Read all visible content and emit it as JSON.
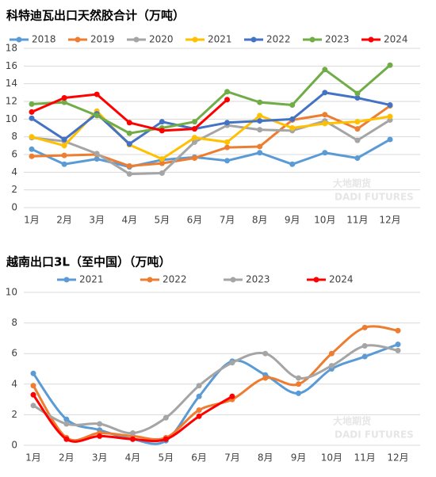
{
  "chart_data": [
    {
      "type": "line",
      "title": "科特迪瓦出口天然胶合计（万吨）",
      "smooth": false,
      "grid": true,
      "legend": "top",
      "watermark": [
        "大地期货",
        "DADI FUTURES"
      ],
      "categories": [
        "1月",
        "2月",
        "3月",
        "4月",
        "5月",
        "6月",
        "7月",
        "8月",
        "9月",
        "10月",
        "11月",
        "12月"
      ],
      "ylim": [
        0,
        18
      ],
      "yticks": [
        0,
        2,
        4,
        6,
        8,
        10,
        12,
        14,
        16,
        18
      ],
      "series": [
        {
          "name": "2018",
          "color": "#5b9bd5",
          "values": [
            6.6,
            4.9,
            5.5,
            4.6,
            5.4,
            5.7,
            5.3,
            6.2,
            4.9,
            6.2,
            5.6,
            7.7
          ]
        },
        {
          "name": "2019",
          "color": "#ed7d31",
          "values": [
            5.8,
            5.9,
            6.0,
            4.7,
            5.0,
            5.6,
            6.8,
            6.9,
            9.9,
            10.5,
            8.9,
            11.5
          ]
        },
        {
          "name": "2020",
          "color": "#a5a5a5",
          "values": [
            7.9,
            7.5,
            6.1,
            3.8,
            3.9,
            7.4,
            9.3,
            8.8,
            8.7,
            9.8,
            7.6,
            9.9
          ]
        },
        {
          "name": "2021",
          "color": "#ffc000",
          "values": [
            8.0,
            7.0,
            10.9,
            7.1,
            5.5,
            7.9,
            7.4,
            10.4,
            9.0,
            9.5,
            9.7,
            10.3
          ]
        },
        {
          "name": "2022",
          "color": "#4472c4",
          "values": [
            10.1,
            7.7,
            10.6,
            7.2,
            9.7,
            8.9,
            9.6,
            9.8,
            10.0,
            13.0,
            12.4,
            11.6
          ]
        },
        {
          "name": "2023",
          "color": "#70ad47",
          "values": [
            11.7,
            11.9,
            10.4,
            8.4,
            9.0,
            9.7,
            13.1,
            11.9,
            11.6,
            15.6,
            12.9,
            16.1
          ]
        },
        {
          "name": "2024",
          "color": "#ff0000",
          "values": [
            10.8,
            12.4,
            12.8,
            9.6,
            8.7,
            8.9,
            12.2,
            null,
            null,
            null,
            null,
            null
          ]
        }
      ]
    },
    {
      "type": "line",
      "title": "越南出口3L（至中国）（万吨）",
      "smooth": true,
      "grid": true,
      "legend": "top",
      "watermark": [
        "大地期货",
        "DADI FUTURES"
      ],
      "categories": [
        "1月",
        "2月",
        "3月",
        "4月",
        "5月",
        "6月",
        "7月",
        "8月",
        "9月",
        "10月",
        "11月",
        "12月"
      ],
      "ylim": [
        0,
        10
      ],
      "yticks": [
        0,
        2,
        4,
        6,
        8,
        10
      ],
      "series": [
        {
          "name": "2021",
          "color": "#5b9bd5",
          "values": [
            4.7,
            1.7,
            1.0,
            0.4,
            0.3,
            3.2,
            5.5,
            4.6,
            3.4,
            5.0,
            5.8,
            6.6
          ]
        },
        {
          "name": "2022",
          "color": "#ed7d31",
          "values": [
            3.9,
            0.5,
            0.8,
            0.6,
            0.5,
            2.3,
            3.0,
            4.4,
            4.0,
            6.0,
            7.7,
            7.5
          ]
        },
        {
          "name": "2023",
          "color": "#a5a5a5",
          "values": [
            2.6,
            1.4,
            1.4,
            0.8,
            1.8,
            3.9,
            5.4,
            6.0,
            4.4,
            5.2,
            6.5,
            6.2
          ]
        },
        {
          "name": "2024",
          "color": "#ff0000",
          "values": [
            3.3,
            0.4,
            0.6,
            0.4,
            0.4,
            1.9,
            3.2,
            null,
            null,
            null,
            null,
            null
          ]
        }
      ]
    }
  ]
}
